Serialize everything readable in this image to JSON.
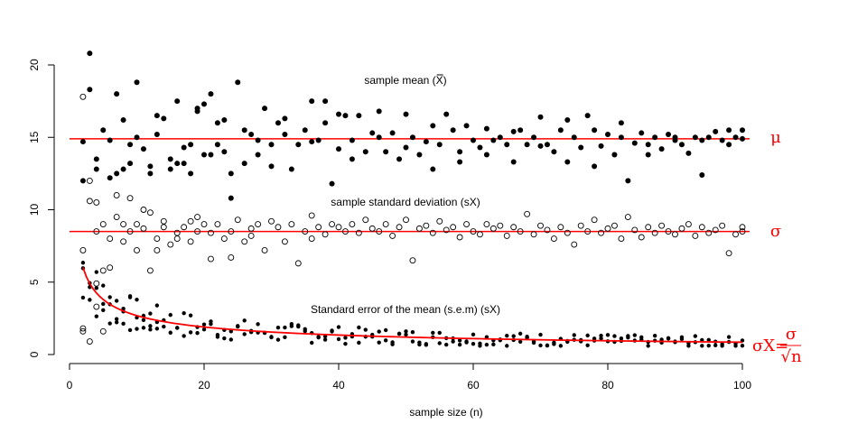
{
  "chart_data": {
    "type": "scatter",
    "xlabel": "sample size (n)",
    "x_ticks": [
      "0",
      "20",
      "40",
      "60",
      "80",
      "100"
    ],
    "y_ticks": [
      "0",
      "5",
      "10",
      "15",
      "20"
    ],
    "xlim": [
      0,
      100
    ],
    "ylim": [
      0,
      20
    ],
    "mu": 14.9,
    "sigma": 8.5,
    "annotations": {
      "mean": "sample mean (X)",
      "sd": "sample standard deviation (sX)",
      "sem": "Standard error of the mean (s.e.m) (sX)"
    },
    "right_labels": {
      "mu": "μ",
      "sigma": "σ",
      "sem_lhs": "σX=",
      "sem_num": "σ",
      "sem_den": "√n"
    },
    "series": [
      {
        "name": "sample mean",
        "marker": "filled",
        "x": [
          2,
          2,
          3,
          3,
          4,
          4,
          5,
          6,
          6,
          7,
          7,
          8,
          8,
          9,
          9,
          10,
          10,
          11,
          12,
          12,
          13,
          13,
          14,
          15,
          15,
          16,
          16,
          17,
          17,
          18,
          18,
          19,
          19,
          20,
          20,
          21,
          21,
          22,
          22,
          23,
          23,
          24,
          24,
          25,
          26,
          26,
          27,
          28,
          28,
          29,
          30,
          30,
          31,
          32,
          32,
          33,
          34,
          35,
          36,
          36,
          37,
          38,
          38,
          39,
          40,
          40,
          41,
          42,
          42,
          43,
          44,
          45,
          46,
          46,
          47,
          48,
          49,
          50,
          50,
          51,
          52,
          53,
          54,
          54,
          55,
          56,
          57,
          58,
          58,
          59,
          60,
          61,
          62,
          62,
          63,
          64,
          65,
          66,
          66,
          67,
          68,
          69,
          70,
          70,
          71,
          72,
          73,
          74,
          74,
          75,
          76,
          77,
          78,
          78,
          79,
          80,
          81,
          82,
          82,
          83,
          84,
          85,
          86,
          86,
          87,
          88,
          89,
          90,
          90,
          91,
          92,
          93,
          94,
          94,
          95,
          96,
          97,
          98,
          98,
          99,
          100,
          100
        ],
        "y": [
          12.0,
          14.7,
          20.8,
          18.3,
          13.5,
          12.8,
          15.5,
          12.2,
          14.8,
          18.0,
          12.5,
          16.2,
          12.8,
          14.5,
          13.2,
          18.8,
          15.0,
          14.2,
          13.0,
          12.5,
          16.5,
          15.2,
          16.3,
          12.8,
          13.5,
          17.5,
          13.2,
          14.3,
          13.2,
          14.5,
          12.5,
          17.0,
          16.8,
          13.8,
          17.3,
          18.0,
          13.8,
          16.0,
          14.5,
          16.2,
          14.0,
          10.8,
          12.5,
          18.8,
          15.5,
          13.2,
          15.2,
          14.8,
          13.8,
          17.0,
          14.5,
          13.0,
          16.0,
          16.3,
          15.2,
          12.8,
          14.5,
          15.5,
          17.5,
          14.7,
          14.8,
          16.0,
          17.5,
          11.8,
          16.6,
          14.2,
          16.5,
          14.8,
          13.5,
          16.5,
          14.0,
          15.3,
          15.0,
          16.8,
          14.0,
          15.3,
          13.5,
          14.3,
          16.6,
          15.0,
          13.8,
          14.7,
          15.8,
          12.8,
          14.5,
          16.6,
          15.5,
          14.0,
          13.3,
          15.8,
          14.8,
          14.3,
          15.6,
          13.8,
          14.8,
          15.0,
          14.5,
          15.4,
          13.3,
          15.5,
          14.5,
          15.0,
          14.4,
          16.4,
          14.5,
          14.0,
          15.5,
          13.3,
          16.2,
          15.0,
          14.3,
          16.5,
          15.5,
          13.0,
          14.4,
          15.2,
          13.8,
          15.0,
          16.0,
          12.0,
          14.6,
          15.3,
          13.8,
          14.5,
          15.0,
          14.2,
          15.2,
          14.8,
          15.0,
          14.5,
          13.9,
          15.0,
          14.8,
          12.4,
          15.0,
          15.4,
          14.8,
          15.5,
          14.5,
          15.0,
          15.5,
          14.9
        ]
      },
      {
        "name": "sample standard deviation",
        "marker": "open",
        "x": [
          2,
          2,
          3,
          3,
          4,
          4,
          5,
          5,
          6,
          6,
          7,
          7,
          8,
          8,
          9,
          9,
          10,
          10,
          11,
          11,
          12,
          12,
          13,
          13,
          14,
          14,
          15,
          16,
          16,
          17,
          18,
          18,
          19,
          19,
          20,
          21,
          21,
          22,
          23,
          24,
          24,
          25,
          26,
          27,
          27,
          28,
          29,
          30,
          31,
          32,
          33,
          34,
          35,
          36,
          36,
          37,
          38,
          39,
          40,
          41,
          42,
          43,
          44,
          45,
          46,
          47,
          48,
          49,
          50,
          51,
          52,
          53,
          54,
          55,
          56,
          57,
          58,
          59,
          60,
          61,
          62,
          63,
          64,
          65,
          66,
          67,
          68,
          69,
          70,
          71,
          72,
          73,
          74,
          75,
          76,
          77,
          78,
          79,
          80,
          81,
          82,
          83,
          84,
          85,
          86,
          87,
          88,
          89,
          90,
          91,
          92,
          93,
          94,
          95,
          96,
          97,
          98,
          99,
          100,
          100
        ],
        "y": [
          17.8,
          7.2,
          12.0,
          10.6,
          8.5,
          10.5,
          9.0,
          5.8,
          8.0,
          6.0,
          11.0,
          9.5,
          7.8,
          9.0,
          8.5,
          10.8,
          9.0,
          7.2,
          10.0,
          8.7,
          9.8,
          5.8,
          8.0,
          7.2,
          9.2,
          8.8,
          7.6,
          8.4,
          8.0,
          8.8,
          9.2,
          7.8,
          8.5,
          9.5,
          9.0,
          6.6,
          8.4,
          9.0,
          8.0,
          8.5,
          6.7,
          9.3,
          7.8,
          8.7,
          8.2,
          9.0,
          7.2,
          9.2,
          8.8,
          7.8,
          9.0,
          6.3,
          8.5,
          8.0,
          9.6,
          8.8,
          8.3,
          9.0,
          8.8,
          8.5,
          9.0,
          8.4,
          9.3,
          8.7,
          8.5,
          9.0,
          8.2,
          8.8,
          9.3,
          6.5,
          8.7,
          8.9,
          8.4,
          9.2,
          8.6,
          8.8,
          8.1,
          9.0,
          8.5,
          8.3,
          9.0,
          8.7,
          8.9,
          8.2,
          8.8,
          8.5,
          9.7,
          8.3,
          8.9,
          8.6,
          8.0,
          8.8,
          8.4,
          7.6,
          8.9,
          8.5,
          9.3,
          8.4,
          8.7,
          8.9,
          8.0,
          9.5,
          8.6,
          8.1,
          8.8,
          8.4,
          8.9,
          8.5,
          8.3,
          8.7,
          9.0,
          8.2,
          8.8,
          8.4,
          8.6,
          8.9,
          7.0,
          8.3,
          8.8,
          8.5
        ]
      },
      {
        "name": "standard error of the mean",
        "marker": "filled-small"
      }
    ],
    "sem_curve": {
      "from": 2,
      "to": 100
    }
  }
}
